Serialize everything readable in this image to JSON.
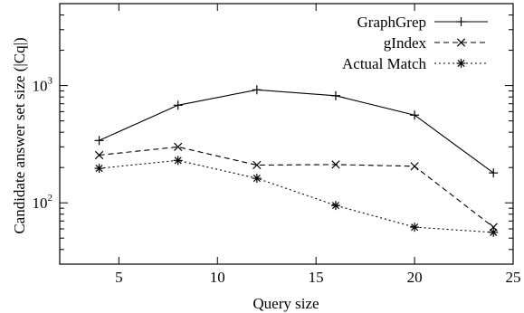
{
  "chart_data": {
    "type": "line",
    "xlabel": "Query size",
    "ylabel": "Candidate answer set size (|Cq|)",
    "x_ticks": [
      5,
      10,
      15,
      20,
      25
    ],
    "y_ticks": [
      {
        "base": "10",
        "exp": "2",
        "value": 100
      },
      {
        "base": "10",
        "exp": "3",
        "value": 1000
      }
    ],
    "xlim": [
      2,
      25
    ],
    "ylim": [
      30,
      5000
    ],
    "y_scale": "log",
    "grid": false,
    "legend_position": "top-right",
    "series": [
      {
        "name": "GraphGrep",
        "style": "solid",
        "marker": "plus",
        "x": [
          4,
          8,
          12,
          16,
          20,
          24
        ],
        "y": [
          340,
          680,
          920,
          820,
          560,
          180
        ]
      },
      {
        "name": "gIndex",
        "style": "dashed",
        "marker": "cross",
        "x": [
          4,
          8,
          12,
          16,
          20,
          24
        ],
        "y": [
          255,
          300,
          210,
          212,
          205,
          62
        ]
      },
      {
        "name": "Actual Match",
        "style": "dotted",
        "marker": "star",
        "x": [
          4,
          8,
          12,
          16,
          20,
          24
        ],
        "y": [
          197,
          230,
          162,
          95,
          62,
          56
        ]
      }
    ]
  }
}
